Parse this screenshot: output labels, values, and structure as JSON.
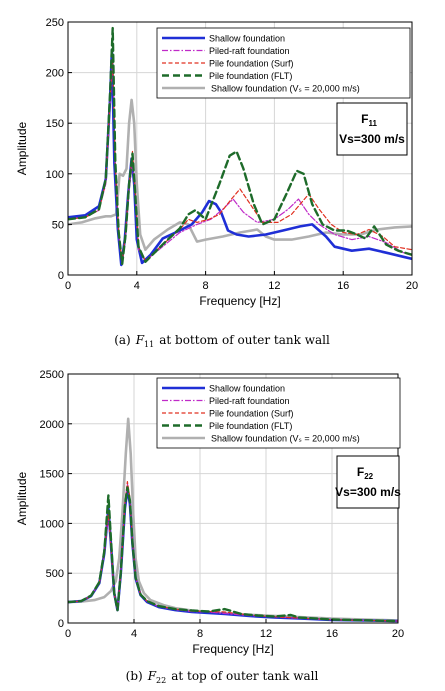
{
  "charts": [
    {
      "type": "line",
      "xlabel": "Frequency [Hz]",
      "ylabel": "Amplitude",
      "xlim": [
        0,
        20
      ],
      "ylim": [
        0,
        250
      ],
      "xticks": [
        0,
        4,
        8,
        12,
        16,
        20
      ],
      "yticks": [
        0,
        50,
        100,
        150,
        200,
        250
      ],
      "grid": true,
      "legend_position": "top-right",
      "box_title_main": "F",
      "box_title_sub": "11",
      "box_velocity": "Vs=300 m/s",
      "caption_prefix": "(a)",
      "caption_symbol": "F",
      "caption_sub": "11",
      "caption_text": "at bottom of outer tank wall",
      "series": [
        {
          "name": "Shallow foundation",
          "color": "#1f2fd6",
          "width": 2.6,
          "dash": "",
          "x": [
            0,
            1,
            1.8,
            2.2,
            2.45,
            2.55,
            2.7,
            2.9,
            3.1,
            3.3,
            3.5,
            3.7,
            3.85,
            4.0,
            4.3,
            4.8,
            5.5,
            6.5,
            7.2,
            7.8,
            8.2,
            8.6,
            8.9,
            9.3,
            9.8,
            10.5,
            11.5,
            12.5,
            13.5,
            14.2,
            15,
            15.5,
            16.5,
            17.5,
            18.5,
            19.5,
            20
          ],
          "y": [
            57,
            59,
            68,
            95,
            175,
            222,
            110,
            45,
            10,
            35,
            80,
            115,
            90,
            35,
            12,
            20,
            36,
            44,
            50,
            62,
            73,
            70,
            62,
            44,
            40,
            38,
            40,
            44,
            48,
            50,
            38,
            28,
            24,
            26,
            22,
            18,
            16
          ]
        },
        {
          "name": "Piled-raft foundation",
          "color": "#c02ac8",
          "width": 1.2,
          "dash": "6,2,1.5,2",
          "x": [
            0,
            1,
            1.8,
            2.2,
            2.45,
            2.6,
            2.75,
            2.95,
            3.15,
            3.35,
            3.55,
            3.75,
            3.9,
            4.1,
            4.5,
            5.5,
            6.5,
            7.5,
            8.3,
            9.0,
            9.6,
            10.2,
            11,
            12,
            12.8,
            13.4,
            14.0,
            14.6,
            15.5,
            16.5,
            17.5,
            18.5,
            19.5,
            20
          ],
          "y": [
            55,
            57,
            64,
            90,
            170,
            210,
            105,
            40,
            12,
            40,
            85,
            110,
            80,
            25,
            14,
            28,
            42,
            50,
            55,
            65,
            75,
            62,
            52,
            55,
            65,
            75,
            60,
            50,
            40,
            35,
            38,
            32,
            22,
            20
          ]
        },
        {
          "name": "Pile foundation (Surf)",
          "color": "#e03020",
          "width": 1.2,
          "dash": "4,2.5",
          "x": [
            0,
            1,
            1.8,
            2.2,
            2.45,
            2.6,
            2.75,
            2.95,
            3.15,
            3.35,
            3.55,
            3.75,
            3.9,
            4.1,
            4.5,
            5.5,
            6.5,
            7.0,
            7.5,
            8.2,
            8.8,
            9.5,
            10.0,
            10.6,
            11.3,
            12.2,
            13.0,
            13.6,
            14.0,
            14.6,
            15.3,
            16,
            16.8,
            17.5,
            18.3,
            19,
            20
          ],
          "y": [
            55,
            57,
            64,
            92,
            175,
            215,
            108,
            42,
            12,
            42,
            90,
            122,
            85,
            28,
            14,
            30,
            45,
            55,
            52,
            55,
            60,
            75,
            85,
            70,
            52,
            52,
            60,
            72,
            80,
            65,
            50,
            42,
            40,
            45,
            38,
            28,
            25
          ]
        },
        {
          "name": "Pile foundation (FLT)",
          "color": "#1e6b2a",
          "width": 2.4,
          "dash": "7,4",
          "x": [
            0,
            1,
            1.8,
            2.2,
            2.45,
            2.6,
            2.75,
            2.95,
            3.15,
            3.35,
            3.55,
            3.75,
            3.9,
            4.1,
            4.5,
            5.5,
            6.5,
            7.0,
            7.4,
            8.0,
            8.8,
            9.4,
            9.8,
            10.2,
            10.8,
            11.3,
            12.0,
            12.7,
            13.3,
            13.7,
            14.2,
            14.8,
            15.5,
            16.2,
            16.8,
            17.3,
            17.8,
            18.5,
            19.2,
            20
          ],
          "y": [
            55,
            57,
            65,
            95,
            180,
            244,
            112,
            42,
            11,
            40,
            90,
            120,
            82,
            28,
            13,
            30,
            46,
            60,
            64,
            55,
            90,
            118,
            122,
            105,
            70,
            50,
            55,
            80,
            103,
            100,
            70,
            50,
            44,
            44,
            40,
            36,
            48,
            30,
            24,
            20
          ]
        },
        {
          "name": "Shallow foundation (Vₛ = 20,000 m/s)",
          "color": "#b0b0b0",
          "width": 2.6,
          "dash": "",
          "x": [
            0,
            0.8,
            1.6,
            2.2,
            2.5,
            2.8,
            3.0,
            3.2,
            3.4,
            3.55,
            3.7,
            3.85,
            4.0,
            4.2,
            4.5,
            5.0,
            5.8,
            6.5,
            7.0,
            7.5,
            8.0,
            9.0,
            10,
            11,
            11.5,
            12,
            13,
            14,
            15,
            16,
            17,
            18,
            19,
            20
          ],
          "y": [
            50,
            52,
            56,
            58,
            58,
            60,
            100,
            98,
            105,
            150,
            173,
            150,
            90,
            40,
            25,
            35,
            45,
            52,
            50,
            33,
            35,
            38,
            42,
            45,
            38,
            35,
            35,
            38,
            42,
            40,
            40,
            45,
            47,
            48
          ]
        }
      ]
    },
    {
      "type": "line",
      "xlabel": "Frequency [Hz]",
      "ylabel": "Amplitude",
      "xlim": [
        0,
        20
      ],
      "ylim": [
        0,
        2500
      ],
      "xticks": [
        0,
        4,
        8,
        12,
        16,
        20
      ],
      "yticks": [
        0,
        500,
        1000,
        1500,
        2000,
        2500
      ],
      "grid": true,
      "legend_position": "top-right",
      "box_title_main": "F",
      "box_title_sub": "22",
      "box_velocity": "Vs=300 m/s",
      "caption_prefix": "(b)",
      "caption_symbol": "F",
      "caption_sub": "22",
      "caption_text": "at top of outer tank wall",
      "series": [
        {
          "name": "Shallow foundation",
          "color": "#1f2fd6",
          "width": 2.6,
          "dash": "",
          "x": [
            0,
            0.8,
            1.4,
            1.9,
            2.2,
            2.45,
            2.6,
            2.8,
            3.0,
            3.2,
            3.45,
            3.6,
            3.75,
            3.9,
            4.1,
            4.4,
            4.8,
            5.5,
            6.5,
            7.5,
            8.5,
            9.5,
            11,
            12.5,
            14,
            16,
            18,
            20
          ],
          "y": [
            210,
            220,
            270,
            400,
            700,
            1150,
            800,
            300,
            130,
            500,
            1150,
            1340,
            1200,
            800,
            450,
            280,
            210,
            160,
            130,
            110,
            100,
            90,
            70,
            55,
            45,
            30,
            25,
            20
          ]
        },
        {
          "name": "Piled-raft foundation",
          "color": "#c02ac8",
          "width": 1.2,
          "dash": "6,2,1.5,2",
          "x": [
            0,
            0.8,
            1.4,
            1.9,
            2.2,
            2.45,
            2.6,
            2.8,
            3.0,
            3.2,
            3.45,
            3.6,
            3.75,
            3.9,
            4.1,
            4.4,
            4.8,
            5.5,
            6.5,
            7.5,
            8.5,
            9.5,
            11,
            12.5,
            14,
            16,
            18,
            20
          ],
          "y": [
            210,
            220,
            270,
            400,
            700,
            1080,
            760,
            290,
            130,
            520,
            1200,
            1400,
            1250,
            820,
            460,
            285,
            215,
            165,
            135,
            115,
            110,
            95,
            75,
            60,
            48,
            32,
            26,
            20
          ]
        },
        {
          "name": "Pile foundation (Surf)",
          "color": "#e03020",
          "width": 1.2,
          "dash": "4,2.5",
          "x": [
            0,
            0.8,
            1.4,
            1.9,
            2.2,
            2.45,
            2.6,
            2.8,
            3.0,
            3.2,
            3.45,
            3.6,
            3.75,
            3.9,
            4.1,
            4.4,
            4.8,
            5.5,
            6.5,
            7.5,
            8.5,
            9.5,
            11,
            12.5,
            14,
            16,
            18,
            20
          ],
          "y": [
            210,
            220,
            270,
            400,
            710,
            1120,
            780,
            295,
            130,
            520,
            1210,
            1420,
            1260,
            830,
            465,
            290,
            220,
            170,
            140,
            120,
            115,
            110,
            80,
            62,
            50,
            33,
            26,
            20
          ]
        },
        {
          "name": "Pile foundation (FLT)",
          "color": "#1e6b2a",
          "width": 2.4,
          "dash": "7,4",
          "x": [
            0,
            0.8,
            1.4,
            1.9,
            2.2,
            2.45,
            2.6,
            2.8,
            3.0,
            3.2,
            3.45,
            3.6,
            3.75,
            3.9,
            4.1,
            4.4,
            4.8,
            5.5,
            6.5,
            7.5,
            8.5,
            9.5,
            10.5,
            11.5,
            12.5,
            13.5,
            14,
            16,
            18,
            20
          ],
          "y": [
            210,
            220,
            275,
            410,
            720,
            1280,
            850,
            300,
            130,
            510,
            1180,
            1360,
            1230,
            810,
            455,
            285,
            220,
            170,
            140,
            125,
            115,
            140,
            90,
            75,
            65,
            80,
            55,
            35,
            27,
            20
          ]
        },
        {
          "name": "Shallow foundation (Vₛ = 20,000 m/s)",
          "color": "#b0b0b0",
          "width": 2.6,
          "dash": "",
          "x": [
            0,
            0.8,
            1.6,
            2.2,
            2.6,
            2.9,
            3.1,
            3.3,
            3.5,
            3.65,
            3.8,
            3.95,
            4.1,
            4.3,
            4.6,
            5.0,
            5.8,
            6.5,
            7.5,
            8.5,
            10,
            12,
            14,
            16,
            18,
            20
          ],
          "y": [
            210,
            215,
            230,
            260,
            320,
            420,
            650,
            1100,
            1700,
            2050,
            1700,
            1100,
            650,
            420,
            300,
            230,
            180,
            150,
            125,
            110,
            90,
            75,
            60,
            45,
            35,
            25
          ]
        }
      ]
    }
  ]
}
